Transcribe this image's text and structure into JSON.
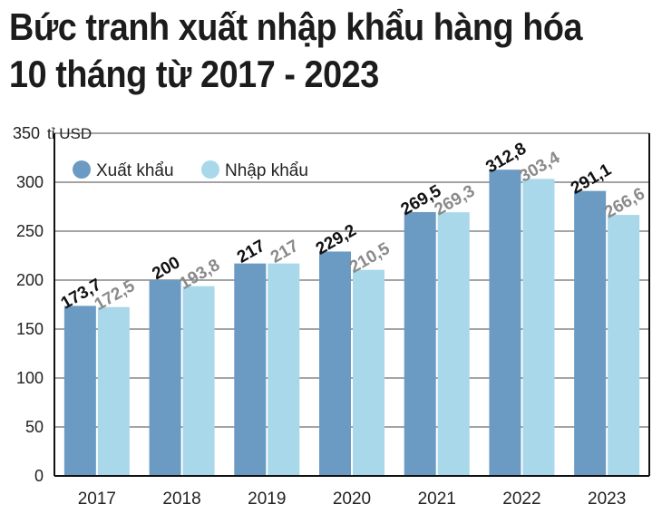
{
  "title_line1": "Bức tranh xuất nhập khẩu hàng hóa",
  "title_line2": "10 tháng từ 2017 - 2023",
  "colors": {
    "export": "#6b9bc3",
    "import": "#a8d8ea",
    "export_label": "#111111",
    "import_label": "#8a8a8a"
  },
  "chart_data": {
    "type": "bar",
    "title": "Bức tranh xuất nhập khẩu hàng hóa 10 tháng từ 2017 - 2023",
    "unit_label": "tỉ USD",
    "categories": [
      "2017",
      "2018",
      "2019",
      "2020",
      "2021",
      "2022",
      "2023"
    ],
    "series": [
      {
        "name": "Xuất khẩu",
        "values": [
          173.7,
          200,
          217,
          229.2,
          269.5,
          312.8,
          291.1
        ],
        "labels": [
          "173,7",
          "200",
          "217",
          "229,2",
          "269,5",
          "312,8",
          "291,1"
        ]
      },
      {
        "name": "Nhập khẩu",
        "values": [
          172.5,
          193.8,
          217,
          210.5,
          269.3,
          303.4,
          266.6
        ],
        "labels": [
          "172,5",
          "193,8",
          "217",
          "210,5",
          "269,3",
          "303,4",
          "266,6"
        ]
      }
    ],
    "ylim": [
      0,
      350
    ],
    "yticks": [
      0,
      50,
      100,
      150,
      200,
      250,
      300,
      350
    ],
    "grid": true,
    "legend": "top-left"
  }
}
